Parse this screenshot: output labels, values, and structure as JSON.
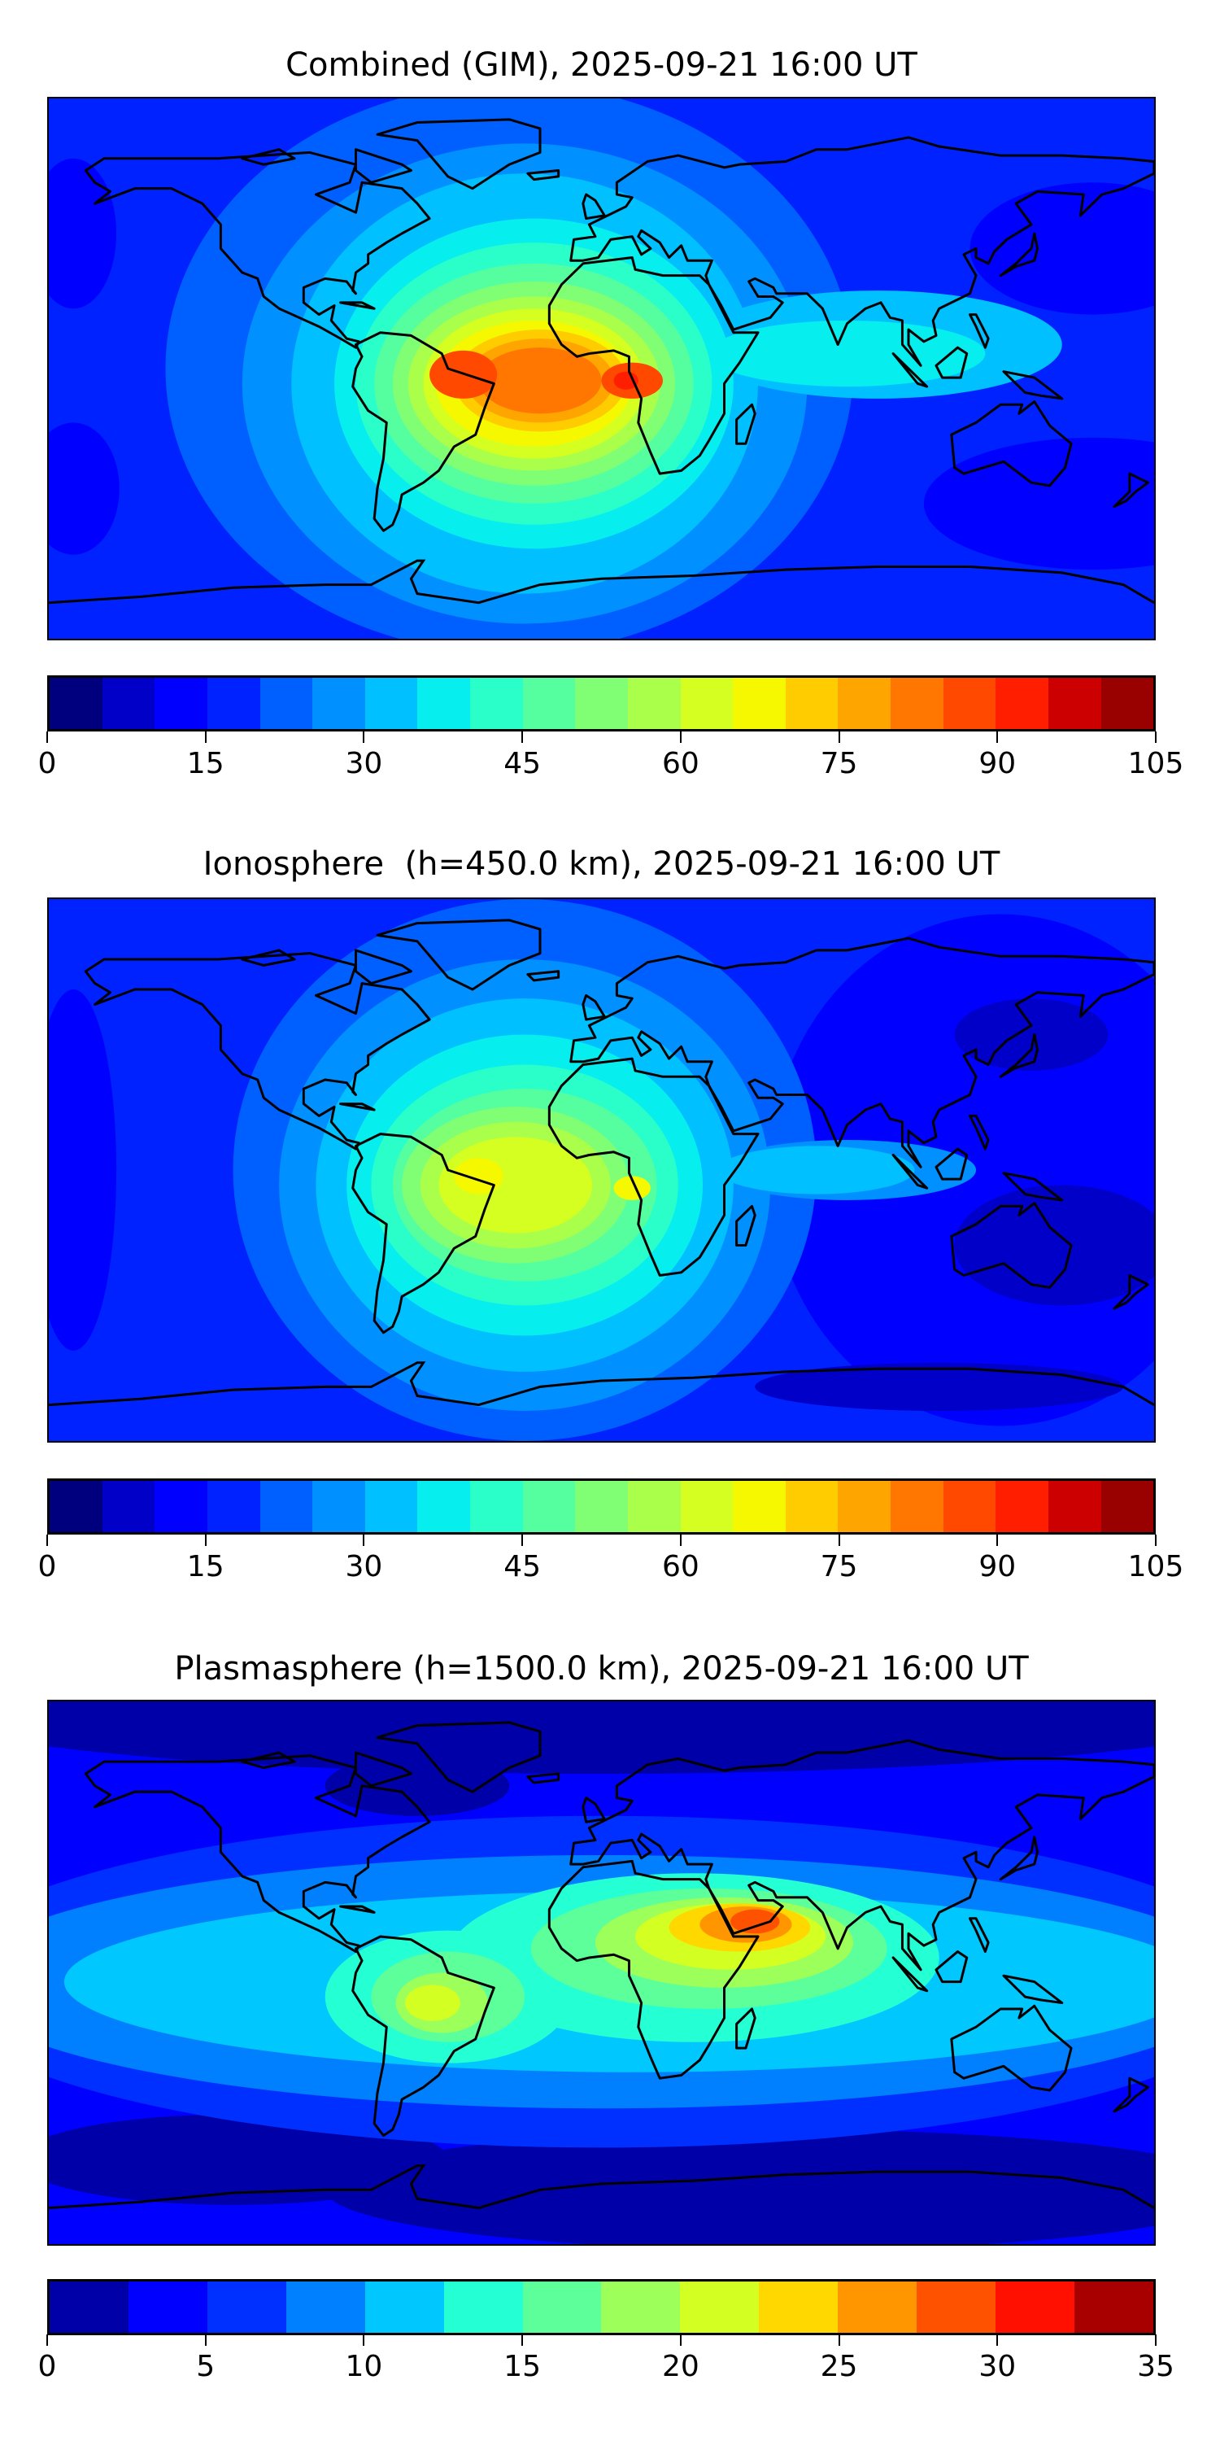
{
  "panels": [
    {
      "title": "Combined (GIM), 2025-09-21 16:00 UT",
      "colorbar": {
        "min": 0,
        "max": 105,
        "ticks": [
          "0",
          "15",
          "30",
          "45",
          "60",
          "75",
          "90",
          "105"
        ],
        "tick_values": [
          0,
          15,
          30,
          45,
          60,
          75,
          90,
          105
        ],
        "colors": [
          "#00007f",
          "#0000c8",
          "#0000ff",
          "#0022ff",
          "#0060ff",
          "#0090ff",
          "#00c0ff",
          "#06eeee",
          "#2affca",
          "#55ff9f",
          "#80ff75",
          "#aaff4a",
          "#d4ff20",
          "#f6f800",
          "#ffcc00",
          "#ffa500",
          "#ff7600",
          "#ff4800",
          "#ff1e00",
          "#cc0000",
          "#990000"
        ]
      }
    },
    {
      "title": "Ionosphere  (h=450.0 km), 2025-09-21 16:00 UT",
      "colorbar": {
        "min": 0,
        "max": 105,
        "ticks": [
          "0",
          "15",
          "30",
          "45",
          "60",
          "75",
          "90",
          "105"
        ],
        "tick_values": [
          0,
          15,
          30,
          45,
          60,
          75,
          90,
          105
        ],
        "colors": [
          "#00007f",
          "#0000c8",
          "#0000ff",
          "#0022ff",
          "#0060ff",
          "#0090ff",
          "#00c0ff",
          "#06eeee",
          "#2affca",
          "#55ff9f",
          "#80ff75",
          "#aaff4a",
          "#d4ff20",
          "#f6f800",
          "#ffcc00",
          "#ffa500",
          "#ff7600",
          "#ff4800",
          "#ff1e00",
          "#cc0000",
          "#990000"
        ]
      }
    },
    {
      "title": "Plasmasphere (h=1500.0 km), 2025-09-21 16:00 UT",
      "colorbar": {
        "min": 0,
        "max": 35,
        "ticks": [
          "0",
          "5",
          "10",
          "15",
          "20",
          "25",
          "30",
          "35"
        ],
        "tick_values": [
          0,
          5,
          10,
          15,
          20,
          25,
          30,
          35
        ],
        "colors": [
          "#0000a8",
          "#0000ff",
          "#0030ff",
          "#0080ff",
          "#00c8ff",
          "#24ffd4",
          "#5cff9a",
          "#9cff5a",
          "#d4ff22",
          "#ffd800",
          "#ff9600",
          "#ff5200",
          "#ff1000",
          "#a80000"
        ]
      }
    }
  ],
  "chart_data": [
    {
      "type": "heatmap",
      "title": "Combined (GIM), 2025-09-21 16:00 UT",
      "colorbar_range": [
        0,
        105
      ],
      "colorbar_ticks": [
        0,
        15,
        30,
        45,
        60,
        75,
        90,
        105
      ],
      "levels_step": 5,
      "peak_region": "South America / equatorial Africa",
      "peak_level_range": [
        90,
        95
      ]
    },
    {
      "type": "heatmap",
      "title": "Ionosphere  (h=450.0 km), 2025-09-21 16:00 UT",
      "colorbar_range": [
        0,
        105
      ],
      "colorbar_ticks": [
        0,
        15,
        30,
        45,
        60,
        75,
        90,
        105
      ],
      "levels_step": 5,
      "peak_region": "South America / West Africa",
      "peak_level_range": [
        65,
        70
      ]
    },
    {
      "type": "heatmap",
      "title": "Plasmasphere (h=1500.0 km), 2025-09-21 16:00 UT",
      "colorbar_range": [
        0,
        35
      ],
      "colorbar_ticks": [
        0,
        5,
        10,
        15,
        20,
        25,
        30,
        35
      ],
      "levels_step": 2.5,
      "peak_region": "East Africa / Arabia",
      "peak_level_range": [
        27.5,
        30
      ]
    }
  ]
}
